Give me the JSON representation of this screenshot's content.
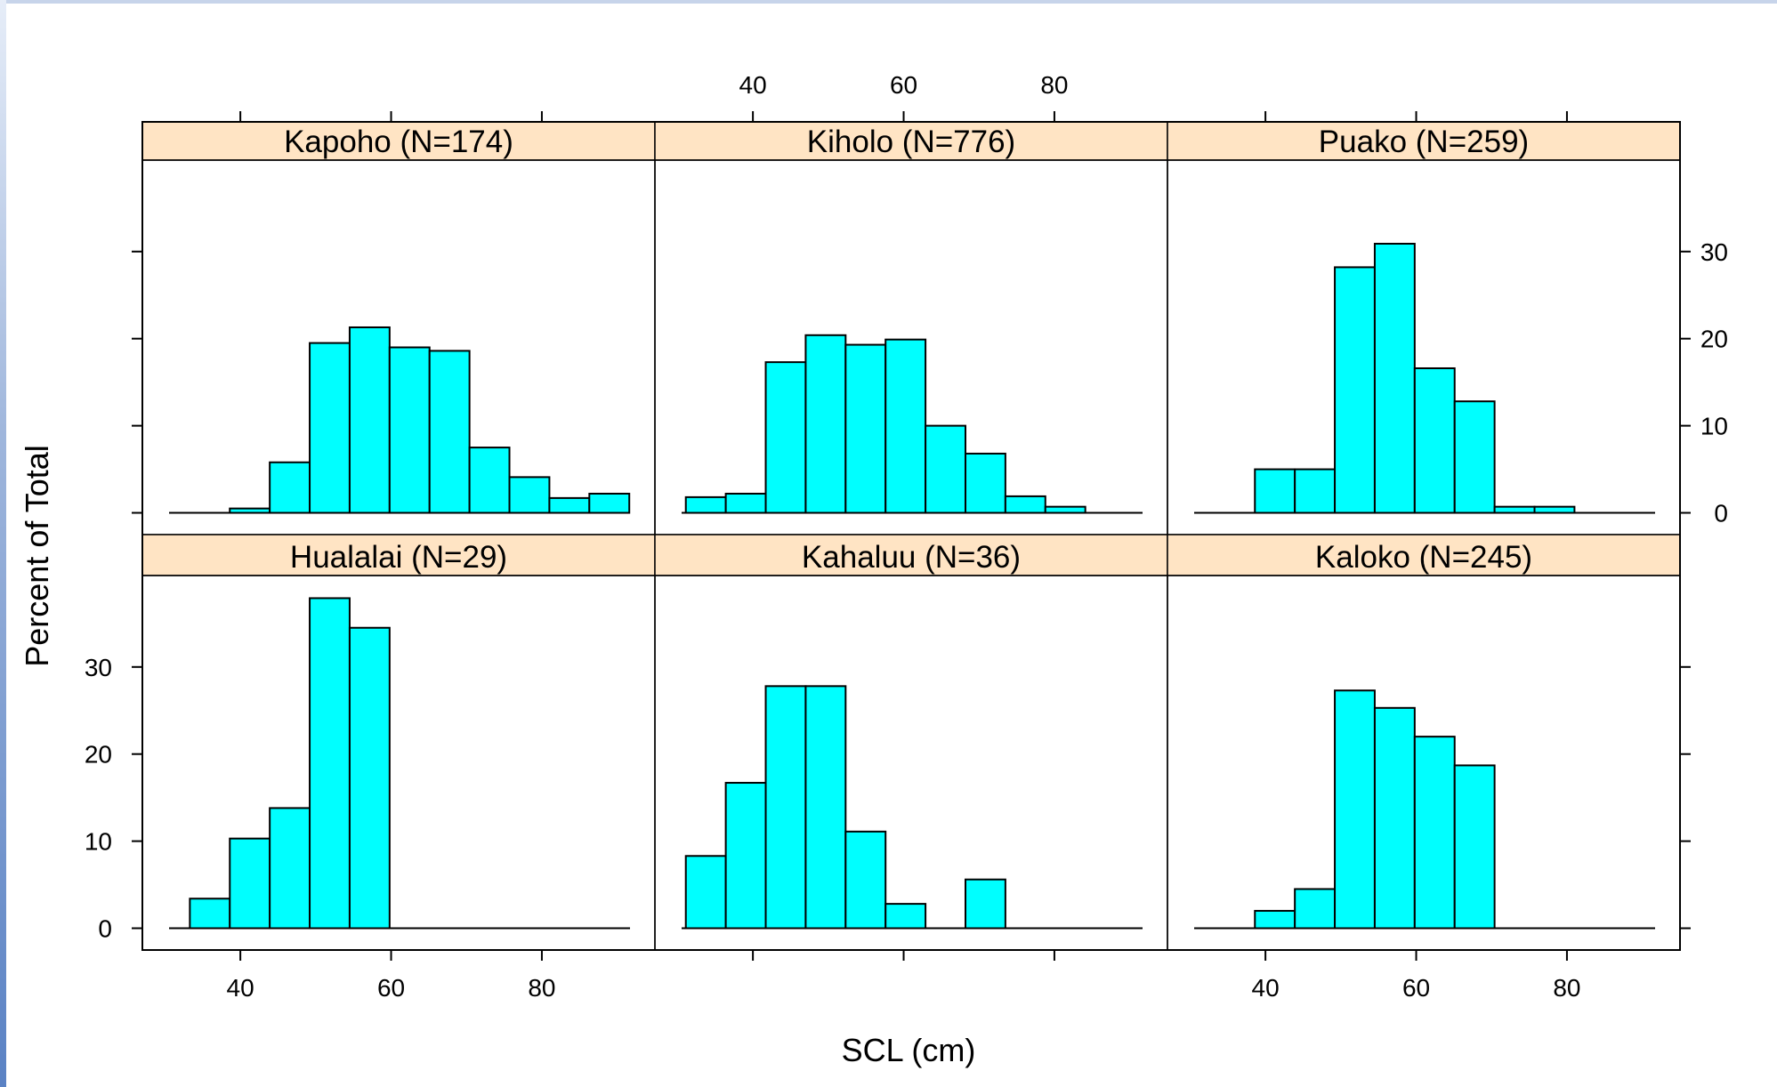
{
  "colors": {
    "bar_fill": "#00ffff",
    "strip_fill": "#ffe4c4",
    "accent_edge": "#5a82c4"
  },
  "chart_data": {
    "type": "bar",
    "subtype": "histogram-lattice",
    "xlabel": "SCL (cm)",
    "ylabel": "Percent of Total",
    "xlim": [
      27,
      95
    ],
    "ylim": [
      -2.5,
      40.5
    ],
    "x_ticks": [
      40,
      60,
      80
    ],
    "y_ticks": [
      0,
      10,
      20,
      30
    ],
    "bin_width": 5.3,
    "grid": false,
    "legend": "none",
    "panels": [
      {
        "name": "Kapoho (N=174)",
        "row": 0,
        "col": 0,
        "bins": [
          {
            "x0": 38.6,
            "x1": 43.9,
            "value": 0.5
          },
          {
            "x0": 43.9,
            "x1": 49.2,
            "value": 5.8
          },
          {
            "x0": 49.2,
            "x1": 54.5,
            "value": 19.5
          },
          {
            "x0": 54.5,
            "x1": 59.8,
            "value": 21.3
          },
          {
            "x0": 59.8,
            "x1": 65.1,
            "value": 19.0
          },
          {
            "x0": 65.1,
            "x1": 70.4,
            "value": 18.6
          },
          {
            "x0": 70.4,
            "x1": 75.7,
            "value": 7.5
          },
          {
            "x0": 75.7,
            "x1": 81.0,
            "value": 4.1
          },
          {
            "x0": 81.0,
            "x1": 86.3,
            "value": 1.7
          },
          {
            "x0": 86.3,
            "x1": 91.6,
            "value": 2.2
          }
        ]
      },
      {
        "name": "Kiholo (N=776)",
        "row": 0,
        "col": 1,
        "bins": [
          {
            "x0": 31.1,
            "x1": 36.4,
            "value": 1.8
          },
          {
            "x0": 36.4,
            "x1": 41.7,
            "value": 2.2
          },
          {
            "x0": 41.7,
            "x1": 47.0,
            "value": 17.3
          },
          {
            "x0": 47.0,
            "x1": 52.3,
            "value": 20.4
          },
          {
            "x0": 52.3,
            "x1": 57.6,
            "value": 19.3
          },
          {
            "x0": 57.6,
            "x1": 62.9,
            "value": 19.9
          },
          {
            "x0": 62.9,
            "x1": 68.2,
            "value": 10.0
          },
          {
            "x0": 68.2,
            "x1": 73.5,
            "value": 6.8
          },
          {
            "x0": 73.5,
            "x1": 78.8,
            "value": 1.9
          },
          {
            "x0": 78.8,
            "x1": 84.1,
            "value": 0.7
          }
        ]
      },
      {
        "name": "Puako (N=259)",
        "row": 0,
        "col": 2,
        "bins": [
          {
            "x0": 38.6,
            "x1": 43.9,
            "value": 5.0
          },
          {
            "x0": 43.9,
            "x1": 49.2,
            "value": 5.0
          },
          {
            "x0": 49.2,
            "x1": 54.5,
            "value": 28.2
          },
          {
            "x0": 54.5,
            "x1": 59.8,
            "value": 30.9
          },
          {
            "x0": 59.8,
            "x1": 65.1,
            "value": 16.6
          },
          {
            "x0": 65.1,
            "x1": 70.4,
            "value": 12.8
          },
          {
            "x0": 70.4,
            "x1": 75.7,
            "value": 0.7
          },
          {
            "x0": 75.7,
            "x1": 81.0,
            "value": 0.7
          }
        ]
      },
      {
        "name": "Hualalai (N=29)",
        "row": 1,
        "col": 0,
        "bins": [
          {
            "x0": 33.3,
            "x1": 38.6,
            "value": 3.4
          },
          {
            "x0": 38.6,
            "x1": 43.9,
            "value": 10.3
          },
          {
            "x0": 43.9,
            "x1": 49.2,
            "value": 13.8
          },
          {
            "x0": 49.2,
            "x1": 54.5,
            "value": 37.9
          },
          {
            "x0": 54.5,
            "x1": 59.8,
            "value": 34.5
          }
        ]
      },
      {
        "name": "Kahaluu (N=36)",
        "row": 1,
        "col": 1,
        "bins": [
          {
            "x0": 31.1,
            "x1": 36.4,
            "value": 8.3
          },
          {
            "x0": 36.4,
            "x1": 41.7,
            "value": 16.7
          },
          {
            "x0": 41.7,
            "x1": 47.0,
            "value": 27.8
          },
          {
            "x0": 47.0,
            "x1": 52.3,
            "value": 27.8
          },
          {
            "x0": 52.3,
            "x1": 57.6,
            "value": 11.1
          },
          {
            "x0": 57.6,
            "x1": 62.9,
            "value": 2.8
          },
          {
            "x0": 62.9,
            "x1": 68.2,
            "value": 0
          },
          {
            "x0": 68.2,
            "x1": 73.5,
            "value": 5.6
          }
        ]
      },
      {
        "name": "Kaloko (N=245)",
        "row": 1,
        "col": 2,
        "bins": [
          {
            "x0": 38.6,
            "x1": 43.9,
            "value": 2.0
          },
          {
            "x0": 43.9,
            "x1": 49.2,
            "value": 4.5
          },
          {
            "x0": 49.2,
            "x1": 54.5,
            "value": 27.3
          },
          {
            "x0": 54.5,
            "x1": 59.8,
            "value": 25.3
          },
          {
            "x0": 59.8,
            "x1": 65.1,
            "value": 22.0
          },
          {
            "x0": 65.1,
            "x1": 70.4,
            "value": 18.7
          }
        ]
      }
    ]
  }
}
